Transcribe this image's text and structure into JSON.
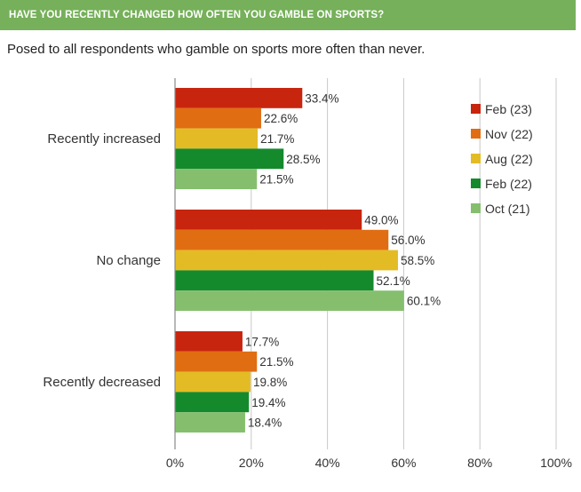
{
  "header": {
    "title": "HAVE YOU RECENTLY CHANGED HOW OFTEN YOU GAMBLE ON SPORTS?"
  },
  "subtitle": "Posed to all respondents who gamble on sports more often than never.",
  "chart_data": {
    "type": "bar",
    "orientation": "horizontal",
    "categories": [
      "Recently increased",
      "No change",
      "Recently decreased"
    ],
    "series": [
      {
        "name": "Feb (23)",
        "values": [
          33.4,
          49.0,
          17.7
        ],
        "color": "#c8250e"
      },
      {
        "name": "Nov (22)",
        "values": [
          22.6,
          56.0,
          21.5
        ],
        "color": "#e06d12"
      },
      {
        "name": "Aug (22)",
        "values": [
          21.7,
          58.5,
          19.8
        ],
        "color": "#e3bc25"
      },
      {
        "name": "Feb (22)",
        "values": [
          28.5,
          52.1,
          19.4
        ],
        "color": "#158a2d"
      },
      {
        "name": "Oct (21)",
        "values": [
          21.5,
          60.1,
          18.4
        ],
        "color": "#85bf6e"
      }
    ],
    "xlim": [
      0,
      100
    ],
    "xticks": [
      "0%",
      "20%",
      "40%",
      "60%",
      "80%",
      "100%"
    ],
    "grid": true,
    "legend": "right"
  }
}
